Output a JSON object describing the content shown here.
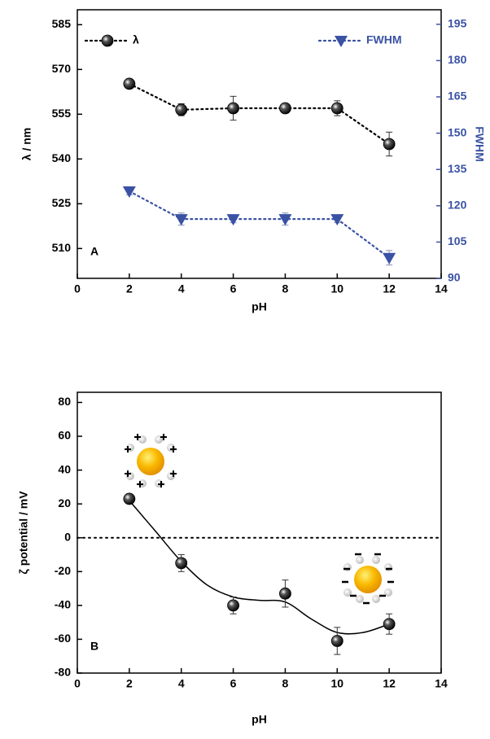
{
  "chart_data": [
    {
      "type": "line",
      "annotation": "A",
      "xlabel": "pH",
      "ylabel": "λ / nm",
      "y2label": "FWHM",
      "xlim": [
        0,
        14
      ],
      "xticks": [
        0,
        2,
        4,
        6,
        8,
        10,
        12,
        14
      ],
      "ylim": [
        500,
        590
      ],
      "yticks": [
        510,
        525,
        540,
        555,
        570,
        585
      ],
      "y2lim": [
        90,
        201
      ],
      "y2ticks": [
        90,
        105,
        120,
        135,
        150,
        165,
        180,
        195
      ],
      "x": [
        2,
        4,
        6,
        8,
        10,
        12
      ],
      "series": [
        {
          "name": "λ",
          "color": "#000000",
          "marker": "sphere",
          "legend": "top-left",
          "values": [
            565.2,
            556.5,
            557,
            557,
            557,
            545
          ],
          "errors": [
            1,
            2,
            4,
            1.5,
            2.5,
            4
          ]
        },
        {
          "name": "FWHM",
          "color": "#3a52a4",
          "marker": "triangle-down",
          "legend": "top-right",
          "axis": "y2",
          "values": [
            126,
            114.5,
            114.5,
            114.5,
            114.5,
            98.5
          ],
          "errors": [
            1.5,
            2.5,
            1.5,
            2.5,
            1.5,
            3
          ]
        }
      ]
    },
    {
      "type": "scatter",
      "annotation": "B",
      "xlabel": "pH",
      "ylabel": "ζ potential / mV",
      "xlim": [
        0,
        14
      ],
      "xticks": [
        0,
        2,
        4,
        6,
        8,
        10,
        12,
        14
      ],
      "ylim": [
        -80,
        86
      ],
      "yticks": [
        -80,
        -60,
        -40,
        -20,
        0,
        20,
        40,
        60,
        80
      ],
      "hline": 0,
      "x": [
        2,
        4,
        6,
        8,
        10,
        12
      ],
      "series": [
        {
          "color": "#000000",
          "marker": "sphere",
          "values": [
            23,
            -15,
            -40,
            -33,
            -61,
            -51
          ],
          "errors": [
            1.5,
            5,
            5,
            8,
            8,
            6
          ]
        }
      ],
      "fit": {
        "x": [
          2,
          3,
          4,
          5,
          6,
          7,
          8,
          9,
          10,
          11,
          12
        ],
        "values": [
          22,
          4,
          -14,
          -28,
          -35,
          -37,
          -38,
          -48,
          -56,
          -56,
          -51
        ]
      }
    }
  ]
}
